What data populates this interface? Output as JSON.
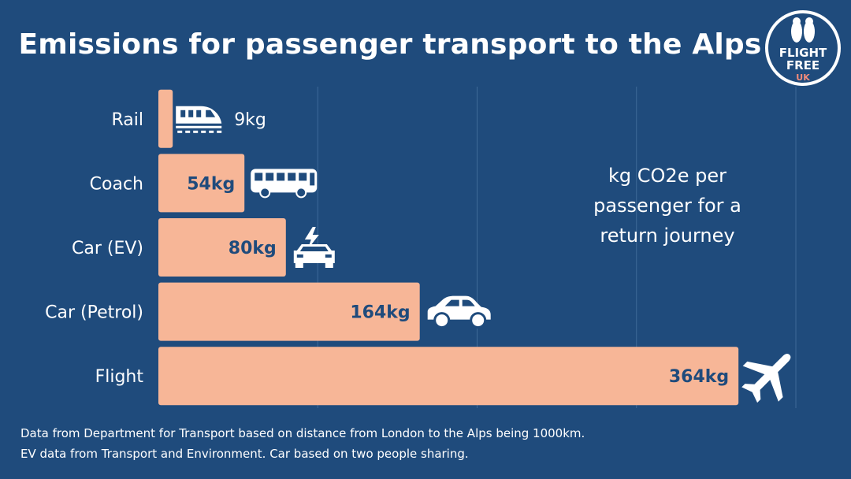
{
  "title": "Emissions for passenger transport to the Alps",
  "logo": {
    "line1": "FLIGHT",
    "line2": "FREE",
    "line3": "UK"
  },
  "annotation": "kg CO2e per passenger for a return journey",
  "notes": [
    "Data from Department for Transport based on distance from London to the Alps being 1000km.",
    "EV data from Transport and Environment. Car based on two people sharing."
  ],
  "colors": {
    "background": "#1f4b7c",
    "bar": "#f7b697",
    "grid": "#3f6a98",
    "text": "#ffffff",
    "logo_accent": "#f28b7a"
  },
  "chart_data": {
    "type": "bar",
    "orientation": "horizontal",
    "categories": [
      "Rail",
      "Coach",
      "Car (EV)",
      "Car (Petrol)",
      "Flight"
    ],
    "values": [
      9,
      54,
      80,
      164,
      364
    ],
    "value_labels": [
      "9kg",
      "54kg",
      "80kg",
      "164kg",
      "364kg"
    ],
    "icons": [
      "train-icon",
      "bus-icon",
      "electric-car-icon",
      "car-icon",
      "airplane-icon"
    ],
    "xlim": [
      0,
      400
    ],
    "grid": true
  }
}
